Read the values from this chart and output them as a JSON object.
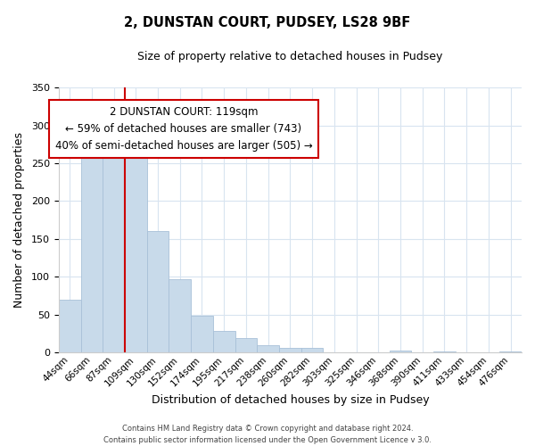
{
  "title": "2, DUNSTAN COURT, PUDSEY, LS28 9BF",
  "subtitle": "Size of property relative to detached houses in Pudsey",
  "xlabel": "Distribution of detached houses by size in Pudsey",
  "ylabel": "Number of detached properties",
  "bar_color": "#c8daea",
  "bar_edge_color": "#a8c0d8",
  "marker_line_color": "#cc0000",
  "categories": [
    "44sqm",
    "66sqm",
    "87sqm",
    "109sqm",
    "130sqm",
    "152sqm",
    "174sqm",
    "195sqm",
    "217sqm",
    "238sqm",
    "260sqm",
    "282sqm",
    "303sqm",
    "325sqm",
    "346sqm",
    "368sqm",
    "390sqm",
    "411sqm",
    "433sqm",
    "454sqm",
    "476sqm"
  ],
  "values": [
    70,
    260,
    293,
    265,
    160,
    97,
    49,
    29,
    19,
    10,
    6,
    6,
    0,
    0,
    0,
    3,
    0,
    2,
    0,
    0,
    2
  ],
  "ylim": [
    0,
    350
  ],
  "yticks": [
    0,
    50,
    100,
    150,
    200,
    250,
    300,
    350
  ],
  "annotation_title": "2 DUNSTAN COURT: 119sqm",
  "annotation_line1": "← 59% of detached houses are smaller (743)",
  "annotation_line2": "40% of semi-detached houses are larger (505) →",
  "annotation_box_color": "#ffffff",
  "annotation_box_edge": "#cc0000",
  "footer_line1": "Contains HM Land Registry data © Crown copyright and database right 2024.",
  "footer_line2": "Contains public sector information licensed under the Open Government Licence v 3.0.",
  "background_color": "#ffffff",
  "grid_color": "#d8e4f0"
}
